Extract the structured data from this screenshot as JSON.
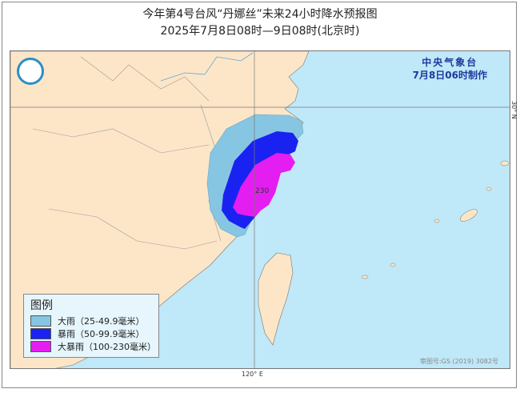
{
  "title": "今年第4号台风“丹娜丝”未来24小时降水预报图",
  "subtitle": "2025年7月8日08时—9日08时(北京时)",
  "org": {
    "name": "中央气象台",
    "issued": "7月8日06时制作"
  },
  "map": {
    "lat_label": "30° N",
    "lon_label": "120° E",
    "max_label": "230",
    "approval": "审图号:GS (2019) 3082号",
    "colors": {
      "sea": "#bfe8f8",
      "land": "#fde6c8"
    }
  },
  "legend": {
    "title": "图例",
    "items": [
      {
        "label": "大雨（25-49.9毫米）",
        "color": "#86c6e2"
      },
      {
        "label": "暴雨（50-99.9毫米）",
        "color": "#1a22f2"
      },
      {
        "label": "大暴雨（100-230毫米）",
        "color": "#e41ef0"
      }
    ]
  }
}
